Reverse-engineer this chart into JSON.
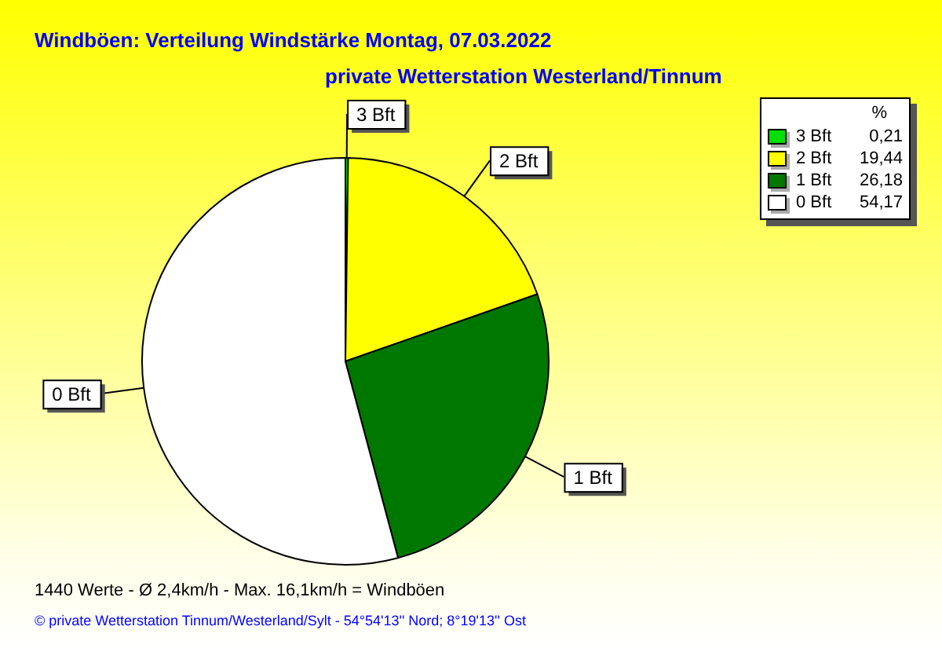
{
  "chart_data": {
    "type": "pie",
    "title": "Windböen: Verteilung Windstärke  Montag, 07.03.2022",
    "subtitle": "private Wetterstation Westerland/Tinnum",
    "legend_title": "%",
    "categories": [
      "3 Bft",
      "2 Bft",
      "1 Bft",
      "0 Bft"
    ],
    "values": [
      0.21,
      19.44,
      26.18,
      54.17
    ],
    "colors": [
      "#00e000",
      "#ffff00",
      "#007800",
      "#ffffff"
    ],
    "value_labels": [
      "0,21",
      "19,44",
      "26,18",
      "54,17"
    ],
    "legend": "top right",
    "annotations": [
      "1440 Werte   -   Ø 2,4km/h  -  Max. 16,1km/h = Windböen",
      "© private Wetterstation Tinnum/Westerland/Sylt   -   54°54'13'' Nord; 8°19'13'' Ost"
    ]
  }
}
